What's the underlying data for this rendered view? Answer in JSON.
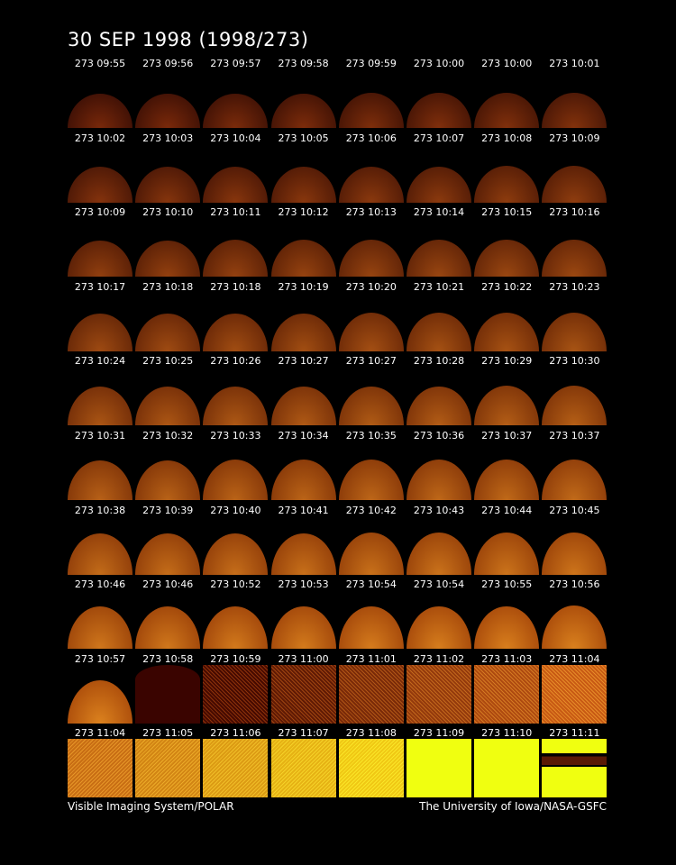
{
  "title": "30 SEP 1998  (1998/273)",
  "frames": [
    [
      "273 09:55",
      "273 09:56",
      "273 09:57",
      "273 09:58",
      "273 09:59",
      "273 10:00",
      "273 10:00",
      "273 10:01"
    ],
    [
      "273 10:02",
      "273 10:03",
      "273 10:04",
      "273 10:05",
      "273 10:06",
      "273 10:07",
      "273 10:08",
      "273 10:09"
    ],
    [
      "273 10:09",
      "273 10:10",
      "273 10:11",
      "273 10:12",
      "273 10:13",
      "273 10:14",
      "273 10:15",
      "273 10:16"
    ],
    [
      "273 10:17",
      "273 10:18",
      "273 10:18",
      "273 10:19",
      "273 10:20",
      "273 10:21",
      "273 10:22",
      "273 10:23"
    ],
    [
      "273 10:24",
      "273 10:25",
      "273 10:26",
      "273 10:27",
      "273 10:27",
      "273 10:28",
      "273 10:29",
      "273 10:30"
    ],
    [
      "273 10:31",
      "273 10:32",
      "273 10:33",
      "273 10:34",
      "273 10:35",
      "273 10:36",
      "273 10:37",
      "273 10:37"
    ],
    [
      "273 10:38",
      "273 10:39",
      "273 10:40",
      "273 10:41",
      "273 10:42",
      "273 10:43",
      "273 10:44",
      "273 10:45"
    ],
    [
      "273 10:46",
      "273 10:46",
      "273 10:52",
      "273 10:53",
      "273 10:54",
      "273 10:54",
      "273 10:55",
      "273 10:56"
    ],
    [
      "273 10:57",
      "273 10:58",
      "273 10:59",
      "273 11:00",
      "273 11:01",
      "273 11:02",
      "273 11:03",
      "273 11:04"
    ],
    [
      "273 11:04",
      "273 11:05",
      "273 11:06",
      "273 11:07",
      "273 11:08",
      "273 11:09",
      "273 11:10",
      "273 11:11"
    ]
  ],
  "footer": {
    "left": "Visible Imaging System/POLAR",
    "right": "The University of Iowa/NASA-GSFC"
  }
}
